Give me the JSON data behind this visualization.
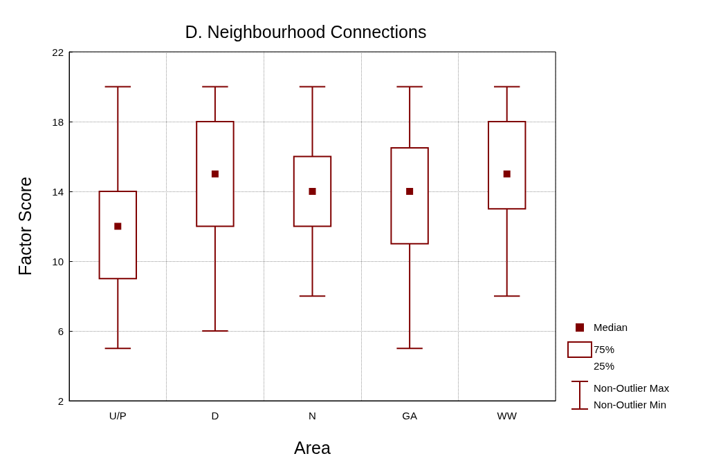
{
  "chart_data": {
    "type": "box",
    "title": "D. Neighbourhood Connections",
    "xlabel": "Area",
    "ylabel": "Factor Score",
    "categories": [
      "U/P",
      "D",
      "N",
      "GA",
      "WW"
    ],
    "series": [
      {
        "name": "Median",
        "color": "#800000",
        "boxes": [
          {
            "low": 5,
            "q1": 9,
            "median": 12,
            "q3": 14,
            "high": 20
          },
          {
            "low": 6,
            "q1": 12,
            "median": 15,
            "q3": 18,
            "high": 20
          },
          {
            "low": 8,
            "q1": 12,
            "median": 14,
            "q3": 16,
            "high": 20
          },
          {
            "low": 5,
            "q1": 11,
            "median": 14,
            "q3": 16.5,
            "high": 20
          },
          {
            "low": 8,
            "q1": 13,
            "median": 15,
            "q3": 18,
            "high": 20
          }
        ]
      }
    ],
    "ylim": [
      2,
      22
    ],
    "yticks": [
      2,
      6,
      10,
      14,
      18,
      22
    ],
    "grid": true,
    "legend": "right",
    "marker": "square",
    "annotations": [
      "75%",
      "25%",
      "Non-Outlier Max",
      "Non-Outlier Min"
    ]
  }
}
